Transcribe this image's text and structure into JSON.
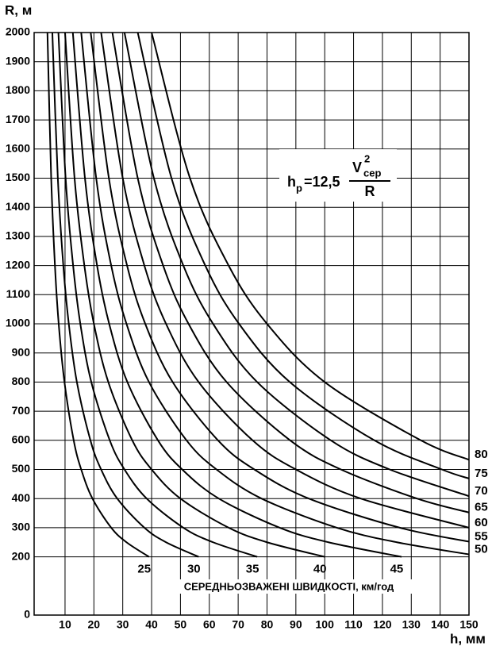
{
  "chart_data": {
    "type": "line",
    "y_title": "R, м",
    "x_title": "h, мм",
    "annotation": "СЕРЕДНЬОЗВАЖЕНІ ШВИДКОСТІ, км/год",
    "formula": {
      "h": "h",
      "h_sub": "р",
      "rest": "=12,5",
      "v": "V",
      "v_sup": "2",
      "v_sub": "сер",
      "denominator": "R"
    },
    "xlim": [
      0,
      150
    ],
    "ylim": [
      0,
      2000
    ],
    "xticks": [
      10,
      20,
      30,
      40,
      50,
      60,
      70,
      80,
      90,
      100,
      110,
      120,
      130,
      140,
      150
    ],
    "yticks": [
      0,
      200,
      300,
      400,
      500,
      600,
      700,
      800,
      900,
      1000,
      1100,
      1200,
      1300,
      1400,
      1500,
      1600,
      1700,
      1800,
      1900,
      2000
    ],
    "grid": true,
    "color": "#000000",
    "series": [
      {
        "name": "25",
        "x": [
          3.9,
          5.2,
          6.5,
          7.8,
          9.8,
          13.0,
          15.6,
          19.5,
          26.0,
          31.3,
          39.1
        ],
        "y": [
          2000,
          1500,
          1200,
          1000,
          800,
          600,
          500,
          400,
          300,
          250,
          200
        ]
      },
      {
        "name": "30",
        "x": [
          5.6,
          7.5,
          9.4,
          11.3,
          14.1,
          18.8,
          22.5,
          28.1,
          37.5,
          45.0,
          56.3
        ],
        "y": [
          2000,
          1500,
          1200,
          1000,
          800,
          600,
          500,
          400,
          300,
          250,
          200
        ]
      },
      {
        "name": "35",
        "x": [
          7.7,
          10.2,
          12.8,
          15.3,
          19.1,
          25.5,
          30.6,
          38.3,
          51.0,
          61.3,
          76.6
        ],
        "y": [
          2000,
          1500,
          1200,
          1000,
          800,
          600,
          500,
          400,
          300,
          250,
          200
        ]
      },
      {
        "name": "40",
        "x": [
          10,
          13.3,
          16.7,
          20,
          25,
          33.3,
          40,
          50,
          66.7,
          80,
          100
        ],
        "y": [
          2000,
          1500,
          1200,
          1000,
          800,
          600,
          500,
          400,
          300,
          250,
          200
        ]
      },
      {
        "name": "45",
        "x": [
          12.7,
          16.9,
          21.1,
          25.3,
          31.6,
          42.2,
          50.6,
          63.3,
          84.4,
          101.3,
          126.6
        ],
        "y": [
          2000,
          1500,
          1200,
          1000,
          800,
          600,
          500,
          400,
          300,
          250,
          200
        ]
      },
      {
        "name": "50",
        "x": [
          15.6,
          20.8,
          26.0,
          31.3,
          39.1,
          52.1,
          62.5,
          78.1,
          104.2,
          125.0,
          150
        ],
        "y": [
          2000,
          1500,
          1200,
          1000,
          800,
          600,
          500,
          400,
          300,
          250,
          208.3
        ]
      },
      {
        "name": "55",
        "x": [
          18.9,
          25.2,
          31.5,
          37.8,
          47.3,
          63.0,
          75.6,
          94.5,
          126.0,
          150
        ],
        "y": [
          2000,
          1500,
          1200,
          1000,
          800,
          600,
          500,
          400,
          300,
          252.1
        ]
      },
      {
        "name": "60",
        "x": [
          22.5,
          30,
          37.5,
          45,
          56.3,
          75,
          90,
          112.5,
          150
        ],
        "y": [
          2000,
          1500,
          1200,
          1000,
          800,
          600,
          500,
          400,
          300
        ]
      },
      {
        "name": "65",
        "x": [
          26.4,
          35.2,
          44.0,
          52.8,
          66.0,
          88.0,
          105.6,
          132.0,
          150
        ],
        "y": [
          2000,
          1500,
          1200,
          1000,
          800,
          600,
          500,
          400,
          352.1
        ]
      },
      {
        "name": "70",
        "x": [
          30.6,
          40.8,
          51.0,
          61.3,
          76.6,
          102.1,
          122.5,
          150
        ],
        "y": [
          2000,
          1500,
          1200,
          1000,
          800,
          600,
          500,
          408.3
        ]
      },
      {
        "name": "75",
        "x": [
          35.2,
          46.9,
          58.6,
          70.3,
          87.9,
          117.2,
          140.6,
          150
        ],
        "y": [
          2000,
          1500,
          1200,
          1000,
          800,
          600,
          500,
          468.8
        ]
      },
      {
        "name": "80",
        "x": [
          40,
          53.3,
          66.7,
          80,
          100,
          133.3,
          150
        ],
        "y": [
          2000,
          1500,
          1200,
          1000,
          800,
          600,
          533.3
        ]
      }
    ]
  }
}
